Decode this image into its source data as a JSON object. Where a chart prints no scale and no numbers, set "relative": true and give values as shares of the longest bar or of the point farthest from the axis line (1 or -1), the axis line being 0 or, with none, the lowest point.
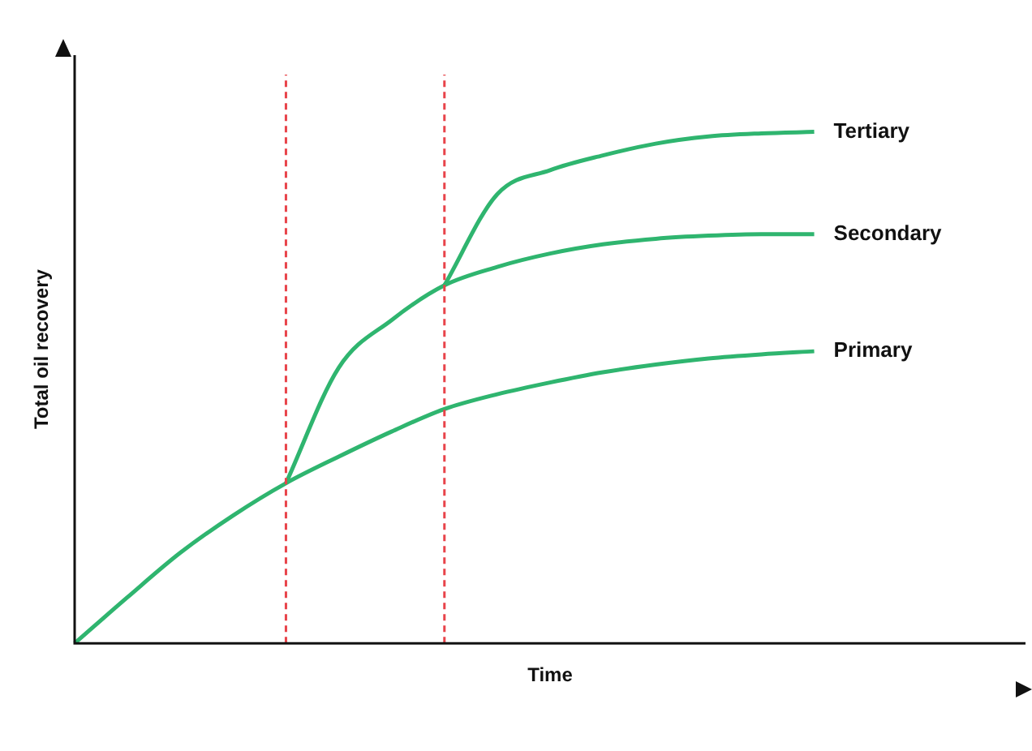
{
  "chart_data": {
    "type": "line",
    "relative": true,
    "xlabel": "Time",
    "ylabel": "Total oil recovery",
    "categories": [
      null,
      null,
      null,
      null,
      null,
      null,
      null,
      null,
      null,
      null,
      null,
      null,
      null,
      null,
      null,
      null,
      null,
      null,
      null
    ],
    "series": [
      {
        "name": "Primary",
        "color": "#2fb56f",
        "values": [
          0,
          0.09,
          0.177,
          0.25,
          0.313,
          0.365,
          0.414,
          0.458,
          0.487,
          0.51,
          0.53,
          0.545,
          0.557,
          0.565,
          0.571,
          null,
          null,
          null,
          null
        ]
      },
      {
        "name": "Secondary",
        "color": "#2fb56f",
        "values": [
          null,
          null,
          null,
          null,
          0.313,
          0.539,
          0.632,
          0.7,
          0.736,
          0.762,
          0.78,
          0.791,
          0.797,
          0.8,
          0.8,
          null,
          null,
          null,
          null
        ]
      },
      {
        "name": "Tertiary",
        "color": "#2fb56f",
        "values": [
          null,
          null,
          null,
          null,
          null,
          null,
          null,
          0.7,
          0.878,
          0.925,
          0.954,
          0.977,
          0.991,
          0.997,
          1,
          null,
          null,
          null,
          null
        ]
      }
    ],
    "legend": false,
    "grid": false,
    "marker": "none",
    "line_style": "solid"
  }
}
